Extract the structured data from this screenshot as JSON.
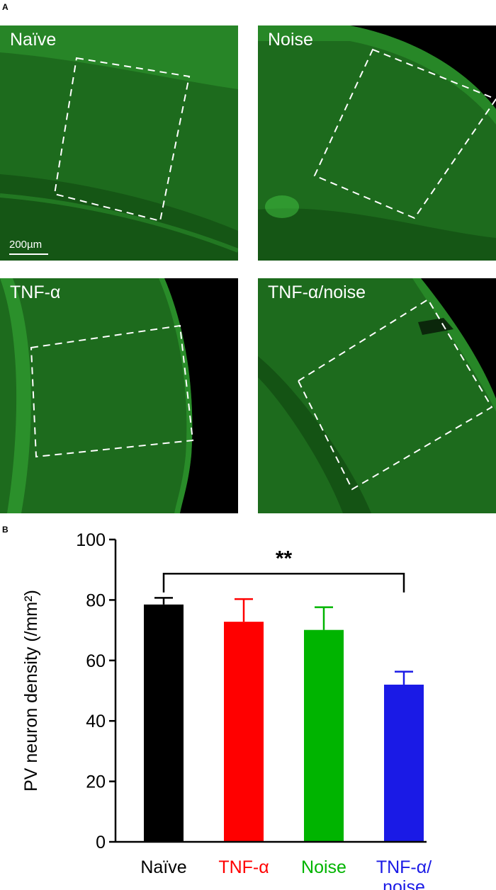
{
  "figure": {
    "panel_a_letter": "A",
    "panel_b_letter": "B"
  },
  "panels": [
    {
      "label": "Naïve",
      "scale_label": "200µm"
    },
    {
      "label": "Noise"
    },
    {
      "label": "TNF-α"
    },
    {
      "label": "TNF-α/noise"
    }
  ],
  "colors": {
    "tissue_green": "#1f8a1f",
    "background_black": "#000000",
    "bar_naive": "#000000",
    "bar_tnf": "#ff0000",
    "bar_noise": "#00b400",
    "bar_combo": "#1a1ae6"
  },
  "chart_data": {
    "type": "bar",
    "title": "",
    "xlabel": "",
    "ylabel": "PV neuron density (/mm²)",
    "ylim": [
      0,
      100
    ],
    "yticks": [
      0,
      20,
      40,
      60,
      80,
      100
    ],
    "categories": [
      "Naïve",
      "TNF-α",
      "Noise",
      "TNF-α/ noise"
    ],
    "category_lines": [
      [
        "Naïve"
      ],
      [
        "TNF-α"
      ],
      [
        "Noise"
      ],
      [
        "TNF-α/",
        "noise"
      ]
    ],
    "category_colors": [
      "#000000",
      "#ff0000",
      "#00b400",
      "#1a1ae6"
    ],
    "values": [
      78.5,
      72.8,
      70.1,
      52.0
    ],
    "errors": [
      2.2,
      7.5,
      7.5,
      4.3
    ],
    "significance": {
      "from": 0,
      "to": 3,
      "label": "**"
    }
  }
}
